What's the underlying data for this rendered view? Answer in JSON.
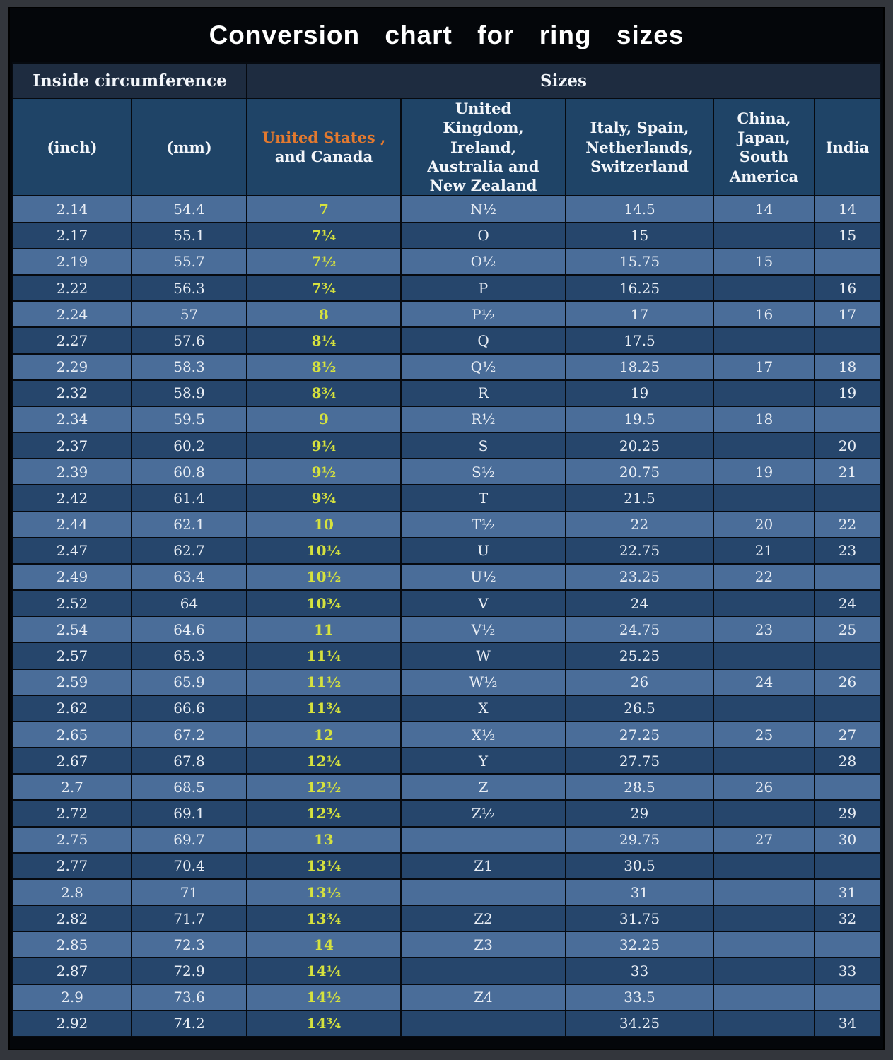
{
  "chart_data": {
    "type": "table",
    "title": "Conversion chart for ring sizes",
    "column_groups": [
      {
        "label": "Inside circumference",
        "span": 2
      },
      {
        "label": "Sizes",
        "span": 5
      }
    ],
    "columns": [
      "(inch)",
      "(mm)",
      "United States , and Canada",
      "United Kingdom, Ireland, Australia and New Zealand",
      "Italy,  Spain, Netherlands, Switzerland",
      "China, Japan, South America",
      "India"
    ],
    "us_header": {
      "line1": "United States ,",
      "line2": "and Canada"
    },
    "rows": [
      [
        "2.14",
        "54.4",
        "7",
        "N½",
        "14.5",
        "14",
        "14"
      ],
      [
        "2.17",
        "55.1",
        "7¼",
        "O",
        "15",
        "",
        "15"
      ],
      [
        "2.19",
        "55.7",
        "7½",
        "O½",
        "15.75",
        "15",
        ""
      ],
      [
        "2.22",
        "56.3",
        "7¾",
        "P",
        "16.25",
        "",
        "16"
      ],
      [
        "2.24",
        "57",
        "8",
        "P½",
        "17",
        "16",
        "17"
      ],
      [
        "2.27",
        "57.6",
        "8¼",
        "Q",
        "17.5",
        "",
        ""
      ],
      [
        "2.29",
        "58.3",
        "8½",
        "Q½",
        "18.25",
        "17",
        "18"
      ],
      [
        "2.32",
        "58.9",
        "8¾",
        "R",
        "19",
        "",
        "19"
      ],
      [
        "2.34",
        "59.5",
        "9",
        "R½",
        "19.5",
        "18",
        ""
      ],
      [
        "2.37",
        "60.2",
        "9¼",
        "S",
        "20.25",
        "",
        "20"
      ],
      [
        "2.39",
        "60.8",
        "9½",
        "S½",
        "20.75",
        "19",
        "21"
      ],
      [
        "2.42",
        "61.4",
        "9¾",
        "T",
        "21.5",
        "",
        ""
      ],
      [
        "2.44",
        "62.1",
        "10",
        "T½",
        "22",
        "20",
        "22"
      ],
      [
        "2.47",
        "62.7",
        "10¼",
        "U",
        "22.75",
        "21",
        "23"
      ],
      [
        "2.49",
        "63.4",
        "10½",
        "U½",
        "23.25",
        "22",
        ""
      ],
      [
        "2.52",
        "64",
        "10¾",
        "V",
        "24",
        "",
        "24"
      ],
      [
        "2.54",
        "64.6",
        "11",
        "V½",
        "24.75",
        "23",
        "25"
      ],
      [
        "2.57",
        "65.3",
        "11¼",
        "W",
        "25.25",
        "",
        ""
      ],
      [
        "2.59",
        "65.9",
        "11½",
        "W½",
        "26",
        "24",
        "26"
      ],
      [
        "2.62",
        "66.6",
        "11¾",
        "X",
        "26.5",
        "",
        ""
      ],
      [
        "2.65",
        "67.2",
        "12",
        "X½",
        "27.25",
        "25",
        "27"
      ],
      [
        "2.67",
        "67.8",
        "12¼",
        "Y",
        "27.75",
        "",
        "28"
      ],
      [
        "2.7",
        "68.5",
        "12½",
        "Z",
        "28.5",
        "26",
        ""
      ],
      [
        "2.72",
        "69.1",
        "12¾",
        "Z½",
        "29",
        "",
        "29"
      ],
      [
        "2.75",
        "69.7",
        "13",
        "",
        "29.75",
        "27",
        "30"
      ],
      [
        "2.77",
        "70.4",
        "13¼",
        "Z1",
        "30.5",
        "",
        ""
      ],
      [
        "2.8",
        "71",
        "13½",
        "",
        "31",
        "",
        "31"
      ],
      [
        "2.82",
        "71.7",
        "13¾",
        "Z2",
        "31.75",
        "",
        "32"
      ],
      [
        "2.85",
        "72.3",
        "14",
        "Z3",
        "32.25",
        "",
        ""
      ],
      [
        "2.87",
        "72.9",
        "14¼",
        "",
        "33",
        "",
        "33"
      ],
      [
        "2.9",
        "73.6",
        "14½",
        "Z4",
        "33.5",
        "",
        ""
      ],
      [
        "2.92",
        "74.2",
        "14¾",
        "",
        "34.25",
        "",
        "34"
      ]
    ]
  },
  "colors": {
    "title_bg": "#04060a",
    "group_header_bg": "#1e2c40",
    "column_header_bg": "#1f4467",
    "row_light": "#4a6d99",
    "row_dark": "#26466c",
    "us_size_text": "#d6e23e",
    "us_header_text": "#e2792f",
    "body_text": "#e9eef5"
  }
}
